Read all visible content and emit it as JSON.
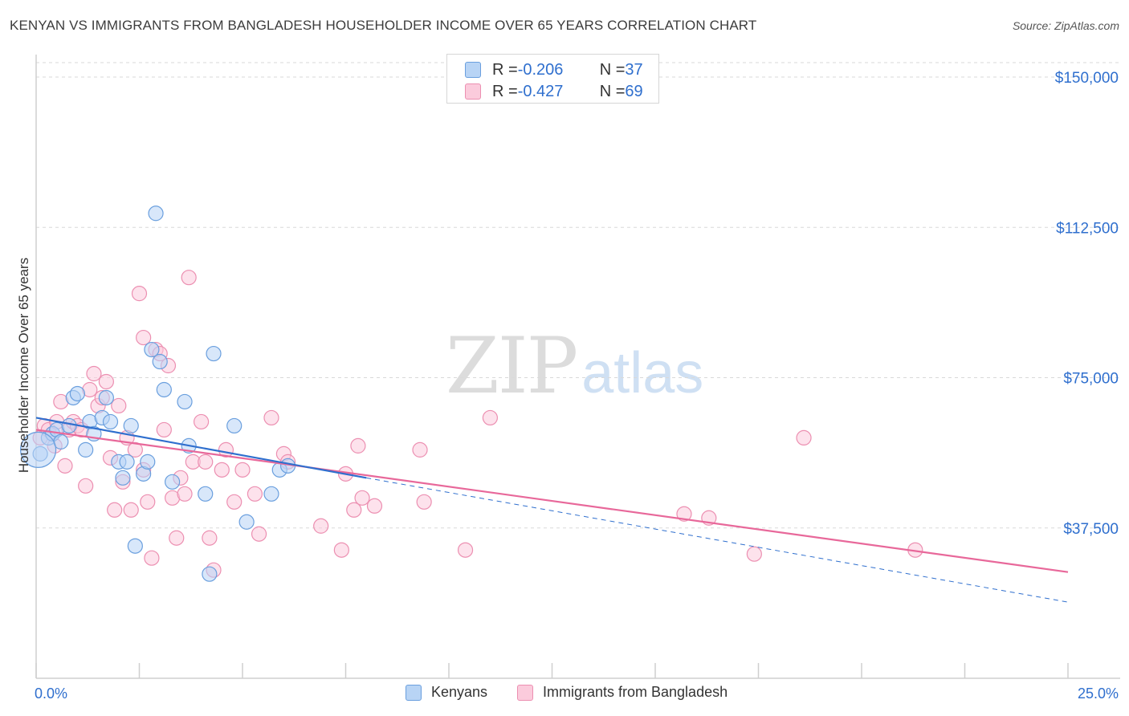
{
  "title": "KENYAN VS IMMIGRANTS FROM BANGLADESH HOUSEHOLDER INCOME OVER 65 YEARS CORRELATION CHART",
  "source": "Source: ZipAtlas.com",
  "watermark": {
    "zip": "ZIP",
    "atlas": "atlas"
  },
  "colors": {
    "blue": "#6a9fde",
    "blue_fill": "#b8d4f5",
    "pink": "#ec8fb1",
    "pink_fill": "#fbcbdc",
    "blue_line": "#2f6fce",
    "pink_line": "#e8689a",
    "axis_text": "#2f6fce"
  },
  "legend_top": {
    "blue": {
      "r_label": "R = ",
      "r_value": "-0.206",
      "n_label": "N = ",
      "n_value": "37"
    },
    "pink": {
      "r_label": "R = ",
      "r_value": "-0.427",
      "n_label": "N = ",
      "n_value": "69"
    }
  },
  "legend_bottom": {
    "blue": "Kenyans",
    "pink": "Immigrants from Bangladesh"
  },
  "chart_data": {
    "type": "scatter",
    "title": "KENYAN VS IMMIGRANTS FROM BANGLADESH HOUSEHOLDER INCOME OVER 65 YEARS CORRELATION CHART",
    "xlabel": "",
    "ylabel": "Householder Income Over 65 years",
    "xlim": [
      0,
      25
    ],
    "ylim": [
      0,
      150000
    ],
    "x_tick_labels": [
      "0.0%",
      "25.0%"
    ],
    "y_tick_labels": [
      "$37,500",
      "$75,000",
      "$112,500",
      "$150,000"
    ],
    "y_ticks": [
      37500,
      75000,
      112500,
      150000
    ],
    "grid": true,
    "legend_position": "top-center",
    "series": [
      {
        "name": "Kenyans",
        "color": "#6a9fde",
        "points": [
          [
            0.1,
            56000
          ],
          [
            0.3,
            60000
          ],
          [
            0.4,
            61000
          ],
          [
            0.5,
            62000
          ],
          [
            0.6,
            59000
          ],
          [
            0.8,
            63000
          ],
          [
            0.9,
            70000
          ],
          [
            1.0,
            71000
          ],
          [
            1.2,
            57000
          ],
          [
            1.3,
            64000
          ],
          [
            1.4,
            61000
          ],
          [
            1.6,
            65000
          ],
          [
            1.7,
            70000
          ],
          [
            1.8,
            64000
          ],
          [
            2.0,
            54000
          ],
          [
            2.1,
            50000
          ],
          [
            2.2,
            54000
          ],
          [
            2.3,
            63000
          ],
          [
            2.4,
            33000
          ],
          [
            2.6,
            51000
          ],
          [
            2.7,
            54000
          ],
          [
            2.8,
            82000
          ],
          [
            2.9,
            116000
          ],
          [
            3.0,
            79000
          ],
          [
            3.1,
            72000
          ],
          [
            3.3,
            49000
          ],
          [
            3.6,
            69000
          ],
          [
            3.7,
            58000
          ],
          [
            4.1,
            46000
          ],
          [
            4.2,
            26000
          ],
          [
            4.3,
            81000
          ],
          [
            4.8,
            63000
          ],
          [
            5.1,
            39000
          ],
          [
            5.7,
            46000
          ],
          [
            5.9,
            52000
          ],
          [
            6.1,
            53000
          ],
          [
            0.05,
            57000
          ]
        ]
      },
      {
        "name": "Immigrants from Bangladesh",
        "color": "#ec8fb1",
        "points": [
          [
            0.1,
            60000
          ],
          [
            0.2,
            63000
          ],
          [
            0.3,
            62000
          ],
          [
            0.4,
            61000
          ],
          [
            0.5,
            64000
          ],
          [
            0.6,
            69000
          ],
          [
            0.7,
            53000
          ],
          [
            0.8,
            62000
          ],
          [
            0.9,
            64000
          ],
          [
            1.0,
            63000
          ],
          [
            1.1,
            62000
          ],
          [
            1.2,
            48000
          ],
          [
            1.3,
            72000
          ],
          [
            1.4,
            76000
          ],
          [
            1.5,
            68000
          ],
          [
            1.7,
            74000
          ],
          [
            1.8,
            55000
          ],
          [
            1.9,
            42000
          ],
          [
            2.0,
            68000
          ],
          [
            2.1,
            49000
          ],
          [
            2.2,
            60000
          ],
          [
            2.3,
            42000
          ],
          [
            2.4,
            57000
          ],
          [
            2.5,
            96000
          ],
          [
            2.6,
            85000
          ],
          [
            2.7,
            44000
          ],
          [
            2.8,
            30000
          ],
          [
            2.9,
            82000
          ],
          [
            3.0,
            81000
          ],
          [
            3.2,
            78000
          ],
          [
            3.3,
            45000
          ],
          [
            3.4,
            35000
          ],
          [
            3.5,
            50000
          ],
          [
            3.6,
            46000
          ],
          [
            3.7,
            100000
          ],
          [
            3.8,
            54000
          ],
          [
            4.0,
            64000
          ],
          [
            4.1,
            54000
          ],
          [
            4.2,
            35000
          ],
          [
            4.3,
            27000
          ],
          [
            4.5,
            52000
          ],
          [
            4.6,
            57000
          ],
          [
            4.8,
            44000
          ],
          [
            5.0,
            52000
          ],
          [
            5.3,
            46000
          ],
          [
            5.4,
            36000
          ],
          [
            5.7,
            65000
          ],
          [
            6.0,
            56000
          ],
          [
            6.1,
            54000
          ],
          [
            6.9,
            38000
          ],
          [
            7.4,
            32000
          ],
          [
            7.5,
            51000
          ],
          [
            7.7,
            42000
          ],
          [
            7.8,
            58000
          ],
          [
            7.9,
            45000
          ],
          [
            8.2,
            43000
          ],
          [
            9.3,
            57000
          ],
          [
            9.4,
            44000
          ],
          [
            10.4,
            32000
          ],
          [
            11.0,
            65000
          ],
          [
            15.7,
            41000
          ],
          [
            16.3,
            40000
          ],
          [
            17.4,
            31000
          ],
          [
            18.6,
            60000
          ],
          [
            21.3,
            32000
          ],
          [
            1.6,
            70000
          ],
          [
            0.45,
            58000
          ],
          [
            3.1,
            62000
          ],
          [
            2.6,
            52000
          ]
        ]
      }
    ],
    "trend_lines": [
      {
        "series": "Kenyans",
        "from": [
          0,
          65000
        ],
        "to": [
          8,
          50000
        ],
        "style": "solid",
        "extended_to": [
          25,
          19000
        ],
        "extended_style": "dashed"
      },
      {
        "series": "Immigrants from Bangladesh",
        "from": [
          0,
          62000
        ],
        "to": [
          25,
          26500
        ],
        "style": "solid"
      }
    ]
  }
}
